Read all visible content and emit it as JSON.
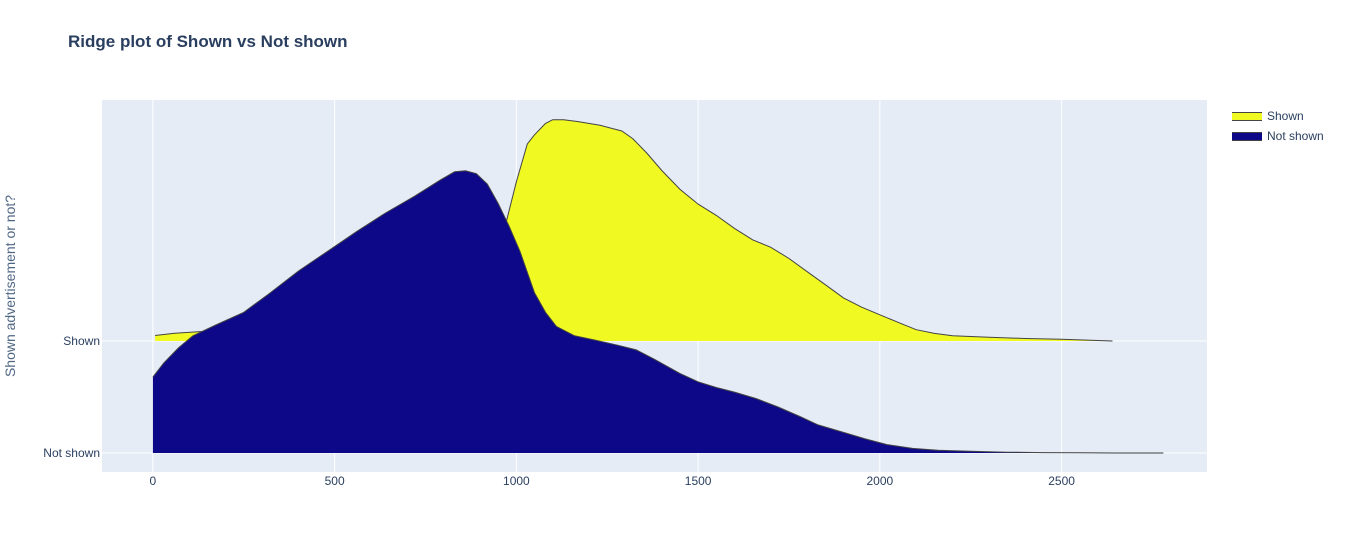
{
  "chart_data": {
    "type": "area",
    "title": "Ridge plot of Shown vs Not shown",
    "ylabel": "Shown advertisement or not?",
    "xlabel": "",
    "xlim": [
      -140,
      2900
    ],
    "x_ticks": [
      0,
      500,
      1000,
      1500,
      2000,
      2500
    ],
    "y_categories": [
      "Not shown",
      "Shown"
    ],
    "plot_background": "#e5ecf6",
    "grid": true,
    "legend_position": "top-right",
    "series": [
      {
        "name": "Shown",
        "baseline": "Shown",
        "color": "#f0f921",
        "x": [
          6,
          60,
          130,
          190,
          250,
          330,
          400,
          500,
          600,
          700,
          800,
          870,
          910,
          940,
          970,
          1000,
          1030,
          1050,
          1080,
          1100,
          1130,
          1170,
          1230,
          1290,
          1320,
          1360,
          1400,
          1450,
          1500,
          1550,
          1600,
          1650,
          1700,
          1750,
          1800,
          1850,
          1900,
          1950,
          2000,
          2050,
          2100,
          2150,
          2200,
          2300,
          2400,
          2500,
          2640
        ],
        "density": [
          0.026,
          0.037,
          0.045,
          0.05,
          0.064,
          0.081,
          0.097,
          0.12,
          0.137,
          0.137,
          0.129,
          0.136,
          0.196,
          0.348,
          0.553,
          0.759,
          0.938,
          0.982,
          1.036,
          1.054,
          1.054,
          1.045,
          1.027,
          1.0,
          0.964,
          0.893,
          0.812,
          0.723,
          0.652,
          0.598,
          0.536,
          0.482,
          0.446,
          0.393,
          0.33,
          0.268,
          0.205,
          0.161,
          0.125,
          0.089,
          0.054,
          0.036,
          0.025,
          0.018,
          0.012,
          0.008,
          0.0
        ]
      },
      {
        "name": "Not shown",
        "baseline": "Not shown",
        "color": "#0d0887",
        "x": [
          0,
          30,
          70,
          110,
          170,
          250,
          320,
          400,
          480,
          560,
          640,
          720,
          790,
          830,
          860,
          890,
          920,
          950,
          980,
          1010,
          1050,
          1080,
          1110,
          1160,
          1220,
          1280,
          1330,
          1380,
          1450,
          1500,
          1550,
          1600,
          1660,
          1720,
          1780,
          1830,
          1900,
          1960,
          2020,
          2090,
          2160,
          2250,
          2350,
          2450,
          2550,
          2650,
          2780
        ],
        "density": [
          0.362,
          0.429,
          0.5,
          0.558,
          0.607,
          0.67,
          0.759,
          0.866,
          0.96,
          1.054,
          1.143,
          1.223,
          1.299,
          1.339,
          1.344,
          1.33,
          1.281,
          1.188,
          1.08,
          0.96,
          0.763,
          0.67,
          0.603,
          0.558,
          0.536,
          0.513,
          0.491,
          0.446,
          0.379,
          0.339,
          0.312,
          0.29,
          0.259,
          0.219,
          0.174,
          0.134,
          0.098,
          0.067,
          0.04,
          0.022,
          0.013,
          0.008,
          0.004,
          0.002,
          0.001,
          0.0,
          0.0
        ]
      }
    ]
  }
}
